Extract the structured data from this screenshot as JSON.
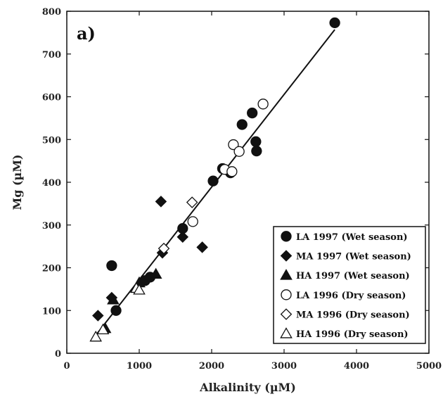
{
  "chart_data": {
    "type": "scatter",
    "panel_label": "a)",
    "xlabel": "Alkalinity (µM)",
    "ylabel": "Mg (µM)",
    "xlim": [
      0,
      5000
    ],
    "ylim": [
      0,
      800
    ],
    "x_ticks": [
      0,
      1000,
      2000,
      3000,
      4000,
      5000
    ],
    "y_ticks": [
      0,
      100,
      200,
      300,
      400,
      500,
      600,
      700,
      800
    ],
    "legend_position": "bottom-right",
    "series": [
      {
        "name": "LA 1997 (Wet season)",
        "marker": "circle",
        "filled": true,
        "points": [
          [
            620,
            205
          ],
          [
            680,
            100
          ],
          [
            1080,
            170
          ],
          [
            1150,
            178
          ],
          [
            1600,
            292
          ],
          [
            2020,
            403
          ],
          [
            2150,
            432
          ],
          [
            2260,
            422
          ],
          [
            2420,
            535
          ],
          [
            2560,
            562
          ],
          [
            2610,
            495
          ],
          [
            2620,
            473
          ],
          [
            3700,
            773
          ]
        ]
      },
      {
        "name": "MA 1997 (Wet season)",
        "marker": "diamond",
        "filled": true,
        "points": [
          [
            430,
            88
          ],
          [
            620,
            130
          ],
          [
            1300,
            355
          ],
          [
            1320,
            235
          ],
          [
            1600,
            272
          ],
          [
            1870,
            248
          ]
        ]
      },
      {
        "name": "HA 1997 (Wet season)",
        "marker": "triangle",
        "filled": true,
        "points": [
          [
            530,
            58
          ],
          [
            640,
            125
          ],
          [
            1000,
            165
          ],
          [
            1230,
            185
          ]
        ]
      },
      {
        "name": "LA 1996 (Dry season)",
        "marker": "circle",
        "filled": false,
        "points": [
          [
            1740,
            308
          ],
          [
            2180,
            430
          ],
          [
            2280,
            425
          ],
          [
            2300,
            488
          ],
          [
            2380,
            472
          ],
          [
            2710,
            583
          ]
        ]
      },
      {
        "name": "MA 1996 (Dry season)",
        "marker": "diamond",
        "filled": false,
        "points": [
          [
            1340,
            245
          ],
          [
            1730,
            353
          ]
        ]
      },
      {
        "name": "HA 1996 (Dry season)",
        "marker": "triangle",
        "filled": false,
        "points": [
          [
            400,
            38
          ],
          [
            500,
            55
          ],
          [
            960,
            152
          ],
          [
            1000,
            148
          ]
        ]
      }
    ],
    "regression_line": {
      "x": [
        390,
        3700
      ],
      "y": [
        40,
        757
      ]
    }
  }
}
